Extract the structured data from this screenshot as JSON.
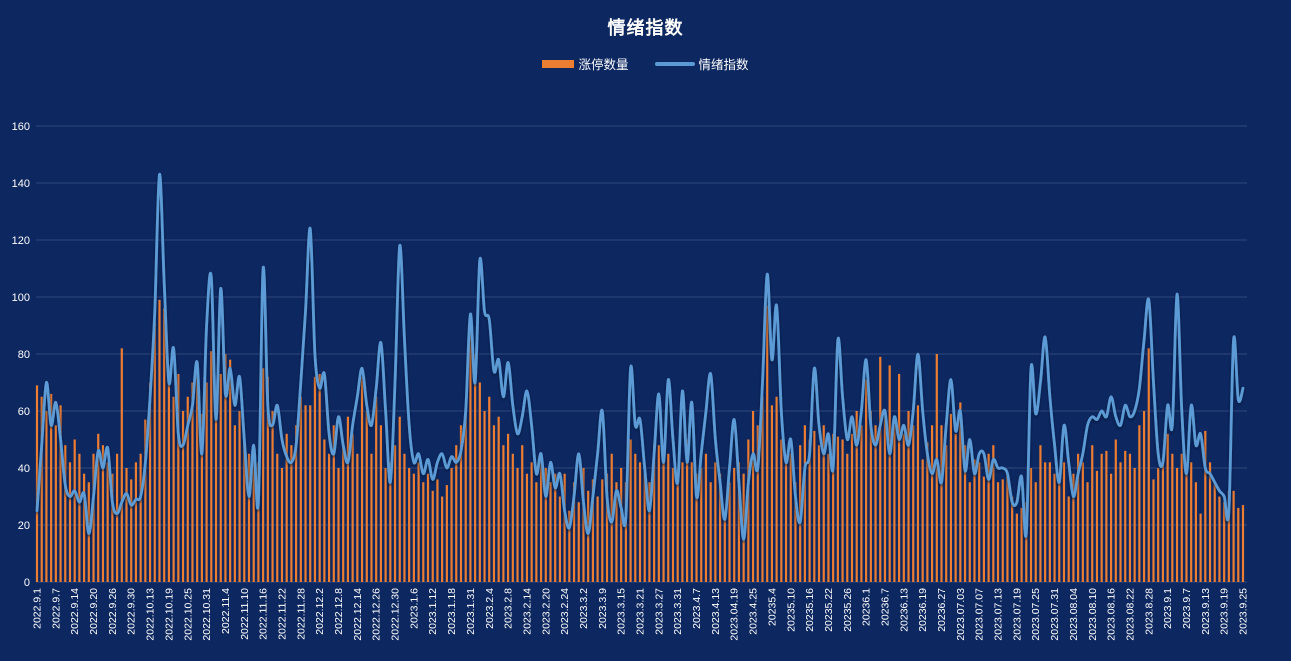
{
  "title": "情绪指数",
  "legend": [
    {
      "label": "涨停数量",
      "series_type": "bar",
      "color": "#ED7D31"
    },
    {
      "label": "情绪指数",
      "series_type": "line",
      "color": "#5B9BD5"
    }
  ],
  "colors": {
    "background": "#0d2760",
    "grid": "#8a99bd",
    "text": "#ffffff",
    "bar": "#ED7D31",
    "line": "#5B9BD5"
  },
  "y_axis": {
    "min": 0,
    "max": 160,
    "step": 20,
    "ticks": [
      0,
      20,
      40,
      60,
      80,
      100,
      120,
      140,
      160
    ]
  },
  "x_axis": {
    "label_every": 4,
    "tick_labels": [
      "2022.9.1",
      "2022.9.7",
      "2022.9.14",
      "2022.9.20",
      "2022.9.26",
      "2022.9.30",
      "2022.10.13",
      "2022.10.19",
      "2022.10.25",
      "2022.10.31",
      "2022.11.4",
      "2022.11.10",
      "2022.11.16",
      "2022.11.22",
      "2022.11.28",
      "2022.12.2",
      "2022.12.8",
      "2022.12.14",
      "2022.12.26",
      "2022.12.30",
      "2023.1.6",
      "2023.1.12",
      "2023.1.18",
      "2023.1.31",
      "2023.2.4",
      "2023.2.8",
      "2023.2.14",
      "2023.2.20",
      "2023.2.24",
      "2023.3.2",
      "2023.3.9",
      "2023.3.15",
      "2023.3.21",
      "2023.3.27",
      "2023.3.31",
      "2023.4.7",
      "2023.4.13",
      "2023.04.19",
      "2023.4.25",
      "20235.4",
      "20235.10",
      "20235.16",
      "20235.22",
      "20235.26",
      "20236.1",
      "20236.7",
      "20236.13",
      "20236.19",
      "20236.27",
      "2023.07.03",
      "2023.07.07",
      "2023.07.13",
      "2023.07.19",
      "2023.07.25",
      "2023.07.31",
      "2023.08.04",
      "2023.08.10",
      "2023.08.16",
      "2023.08.22",
      "2023.8.28",
      "2023.9.1",
      "2023.9.7",
      "2023.9.13",
      "2023.9.19",
      "2023.9.25"
    ]
  },
  "chart_data": {
    "type": "combo",
    "title": "情绪指数",
    "ylim": [
      0,
      160
    ],
    "grid": true,
    "legend_position": "top",
    "point_count": 257,
    "x_tick_labels_every": 4,
    "series": [
      {
        "name": "涨停数量",
        "type": "bar",
        "color": "#ED7D31",
        "values": [
          69,
          65,
          60,
          66,
          55,
          62,
          48,
          42,
          50,
          45,
          38,
          35,
          45,
          52,
          48,
          42,
          38,
          45,
          82,
          40,
          36,
          42,
          45,
          57,
          70,
          91,
          99,
          96,
          73,
          65,
          73,
          60,
          65,
          70,
          76,
          59,
          70,
          81,
          62,
          73,
          80,
          78,
          55,
          60,
          52,
          45,
          48,
          42,
          75,
          72,
          60,
          45,
          40,
          52,
          48,
          55,
          65,
          62,
          62,
          72,
          73,
          50,
          45,
          55,
          40,
          48,
          58,
          52,
          45,
          72,
          60,
          45,
          65,
          55,
          40,
          42,
          48,
          58,
          45,
          40,
          38,
          42,
          35,
          38,
          32,
          36,
          30,
          34,
          40,
          48,
          55,
          60,
          94,
          80,
          70,
          60,
          65,
          55,
          58,
          48,
          52,
          45,
          40,
          48,
          38,
          42,
          35,
          45,
          40,
          35,
          38,
          30,
          38,
          25,
          35,
          28,
          40,
          32,
          36,
          30,
          36,
          38,
          45,
          35,
          40,
          35,
          50,
          45,
          42,
          38,
          35,
          48,
          48,
          42,
          45,
          40,
          35,
          42,
          50,
          42,
          38,
          40,
          45,
          35,
          42,
          38,
          25,
          35,
          40,
          42,
          38,
          50,
          60,
          55,
          65,
          97,
          62,
          65,
          50,
          42,
          45,
          35,
          48,
          55,
          50,
          53,
          48,
          55,
          45,
          52,
          51,
          50,
          45,
          52,
          60,
          55,
          71,
          60,
          55,
          79,
          58,
          76,
          58,
          73,
          52,
          60,
          55,
          62,
          43,
          49,
          55,
          80,
          55,
          48,
          59,
          52,
          63,
          48,
          35,
          43,
          42,
          37,
          45,
          48,
          35,
          36,
          38,
          30,
          24,
          26,
          28,
          40,
          35,
          48,
          42,
          42,
          38,
          35,
          42,
          30,
          38,
          45,
          42,
          35,
          48,
          39,
          45,
          46,
          38,
          50,
          42,
          46,
          45,
          40,
          55,
          60,
          82,
          36,
          40,
          42,
          52,
          45,
          40,
          45,
          38,
          42,
          35,
          24,
          53,
          42,
          35,
          30,
          28,
          32,
          32,
          26,
          27
        ]
      },
      {
        "name": "情绪指数",
        "type": "line",
        "color": "#5B9BD5",
        "values": [
          25,
          48,
          70,
          55,
          63,
          50,
          34,
          30,
          32,
          28,
          31,
          17,
          30,
          46,
          40,
          47,
          28,
          24,
          28,
          31,
          27,
          29,
          30,
          42,
          65,
          95,
          143,
          105,
          70,
          82,
          52,
          48,
          55,
          62,
          77,
          45,
          90,
          107,
          57,
          103,
          66,
          75,
          62,
          72,
          50,
          30,
          48,
          28,
          110,
          62,
          55,
          62,
          50,
          44,
          42,
          48,
          70,
          95,
          124,
          80,
          68,
          73,
          52,
          45,
          58,
          48,
          42,
          55,
          65,
          75,
          62,
          55,
          68,
          84,
          60,
          35,
          70,
          118,
          85,
          55,
          42,
          45,
          38,
          43,
          36,
          42,
          45,
          40,
          44,
          42,
          46,
          60,
          94,
          70,
          113,
          95,
          92,
          74,
          78,
          65,
          77,
          62,
          52,
          58,
          67,
          55,
          38,
          45,
          30,
          42,
          33,
          38,
          25,
          19,
          30,
          45,
          28,
          17,
          30,
          45,
          60,
          30,
          21,
          32,
          26,
          23,
          75,
          55,
          57,
          40,
          25,
          45,
          66,
          42,
          71,
          50,
          35,
          67,
          42,
          63,
          30,
          45,
          60,
          73,
          50,
          35,
          22,
          40,
          57,
          35,
          15,
          35,
          45,
          40,
          70,
          108,
          78,
          97,
          60,
          42,
          50,
          30,
          21,
          40,
          45,
          75,
          55,
          45,
          52,
          40,
          85,
          65,
          50,
          58,
          48,
          60,
          78,
          55,
          48,
          55,
          60,
          45,
          58,
          50,
          55,
          48,
          60,
          80,
          60,
          45,
          38,
          43,
          35,
          55,
          71,
          53,
          60,
          39,
          50,
          38,
          45,
          45,
          36,
          43,
          40,
          40,
          38,
          28,
          28,
          37,
          17,
          75,
          59,
          70,
          86,
          65,
          48,
          35,
          55,
          42,
          30,
          38,
          45,
          55,
          58,
          57,
          60,
          58,
          65,
          58,
          55,
          62,
          58,
          60,
          68,
          85,
          99,
          70,
          45,
          42,
          62,
          55,
          101,
          60,
          38,
          62,
          48,
          52,
          40,
          38,
          35,
          32,
          30,
          25,
          85,
          64,
          68
        ]
      }
    ]
  }
}
